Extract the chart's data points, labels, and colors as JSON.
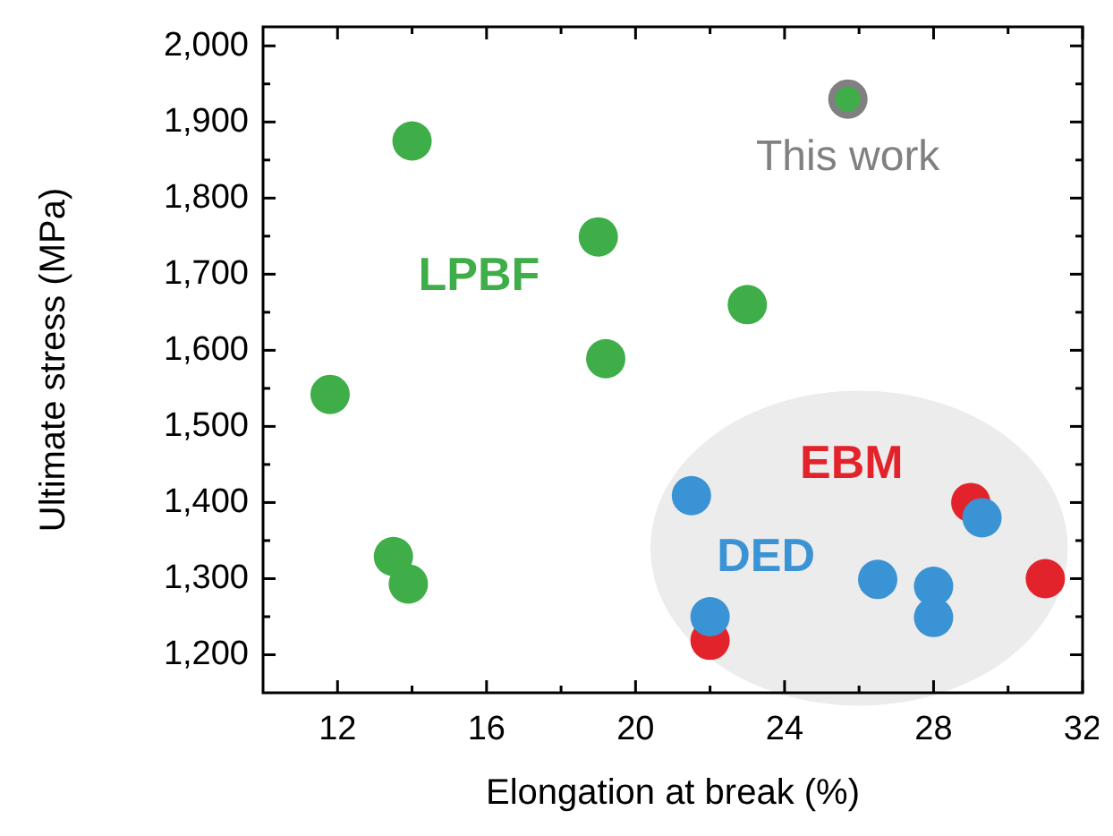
{
  "chart_data": {
    "type": "scatter",
    "xlabel": "Elongation at break (%)",
    "ylabel": "Ultimate stress (MPa)",
    "xlim": [
      10,
      32
    ],
    "ylim": [
      1150,
      2025
    ],
    "xticks": [
      12,
      {
        "value": 14,
        "label": null
      },
      16,
      {
        "value": 18,
        "label": null
      },
      20,
      {
        "value": 22,
        "label": null
      },
      24,
      {
        "value": 26,
        "label": null
      },
      28,
      {
        "value": 30,
        "label": null
      },
      32
    ],
    "yticks": [
      {
        "value": 1200,
        "label": "1,200"
      },
      {
        "value": 1250,
        "label": null
      },
      {
        "value": 1300,
        "label": "1,300"
      },
      {
        "value": 1350,
        "label": null
      },
      {
        "value": 1400,
        "label": "1,400"
      },
      {
        "value": 1450,
        "label": null
      },
      {
        "value": 1500,
        "label": "1,500"
      },
      {
        "value": 1550,
        "label": null
      },
      {
        "value": 1600,
        "label": "1,600"
      },
      {
        "value": 1650,
        "label": null
      },
      {
        "value": 1700,
        "label": "1,700"
      },
      {
        "value": 1750,
        "label": null
      },
      {
        "value": 1800,
        "label": "1,800"
      },
      {
        "value": 1850,
        "label": null
      },
      {
        "value": 1900,
        "label": "1,900"
      },
      {
        "value": 1950,
        "label": null
      },
      {
        "value": 2000,
        "label": "2,000"
      }
    ],
    "grid": false,
    "marker": "circle",
    "series": [
      {
        "name": "LPBF",
        "color": "#3fae49",
        "x": [
          14.0,
          11.8,
          19.0,
          19.2,
          23.0,
          13.5,
          13.9
        ],
        "values": [
          1875,
          1542,
          1749,
          1589,
          1660,
          1329,
          1293
        ]
      },
      {
        "name": "EBM",
        "color": "#e3232b",
        "x": [
          22.0,
          29.0,
          31.0
        ],
        "values": [
          1219,
          1400,
          1300
        ]
      },
      {
        "name": "DED",
        "color": "#3a93d5",
        "x": [
          21.5,
          22.0,
          26.5,
          28.0,
          28.0,
          29.3
        ],
        "values": [
          1409,
          1250,
          1299,
          1290,
          1249,
          1380
        ]
      },
      {
        "name": "This work",
        "color": "#3fae49",
        "x": [
          25.7
        ],
        "values": [
          1930
        ]
      }
    ]
  }
}
